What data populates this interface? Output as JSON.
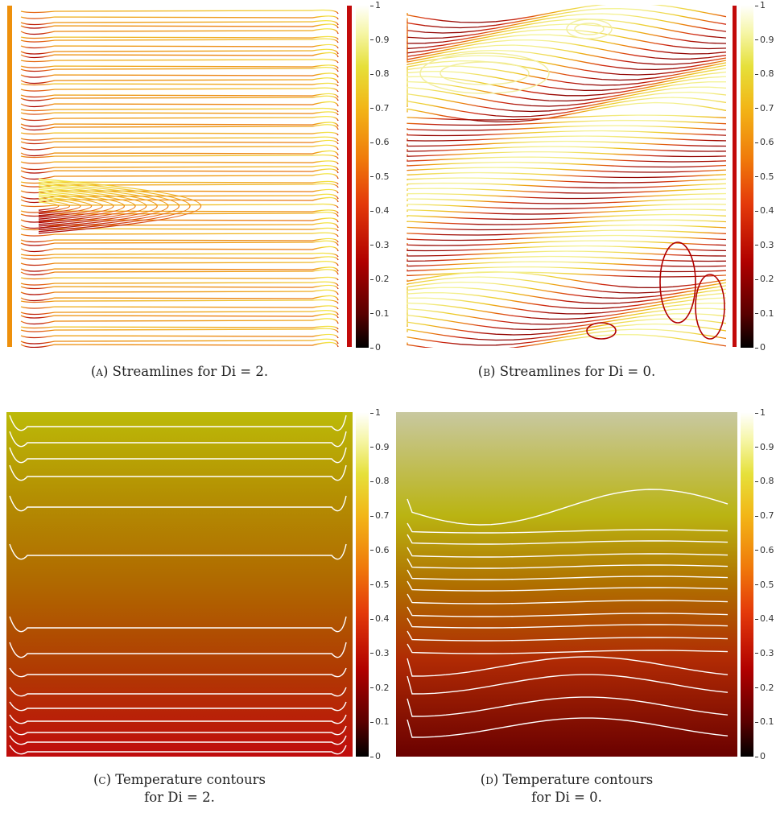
{
  "colorbar": {
    "ticks": [
      "1",
      "0.9",
      "0.8",
      "0.7",
      "0.6",
      "0.5",
      "0.4",
      "0.3",
      "0.2",
      "0.1",
      "0"
    ]
  },
  "panels": {
    "a": {
      "tag": "(a)",
      "caption": "Streamlines for Di = 2."
    },
    "b": {
      "tag": "(b)",
      "caption": "Streamlines for Di = 0."
    },
    "c": {
      "tag": "(c)",
      "caption_line1": "Temperature contours",
      "caption_line2": "for Di = 2."
    },
    "d": {
      "tag": "(d)",
      "caption_line1": "Temperature contours",
      "caption_line2": "for Di = 0."
    }
  },
  "colors": {
    "hot_top": "#f4f07a",
    "mid": "#ee8a0c",
    "low": "#c40c0c",
    "bottom": "#6a0000",
    "contour": "#ffffff"
  }
}
